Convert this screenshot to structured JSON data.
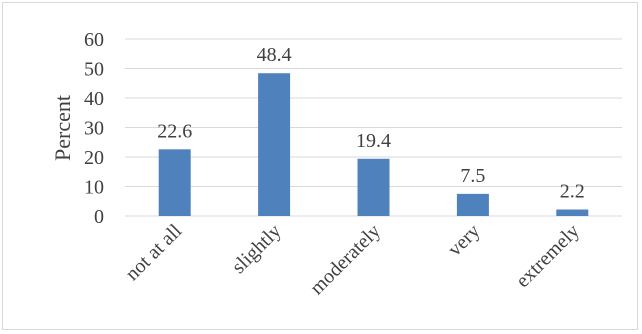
{
  "chart_data": {
    "type": "bar",
    "title": "",
    "xlabel": "",
    "ylabel": "Percent",
    "ylim": [
      0,
      60
    ],
    "yticks": [
      0,
      10,
      20,
      30,
      40,
      50,
      60
    ],
    "grid": true,
    "legend": "none",
    "categories": [
      "not at all",
      "slightly",
      "moderately",
      "very",
      "extremely"
    ],
    "values": [
      22.6,
      48.4,
      19.4,
      7.5,
      2.2
    ],
    "data_labels": [
      "22.6",
      "48.4",
      "19.4",
      "7.5",
      "2.2"
    ],
    "colors": {
      "bar": "#4f81bd",
      "grid": "#d9d9d9",
      "text": "#404040"
    }
  }
}
